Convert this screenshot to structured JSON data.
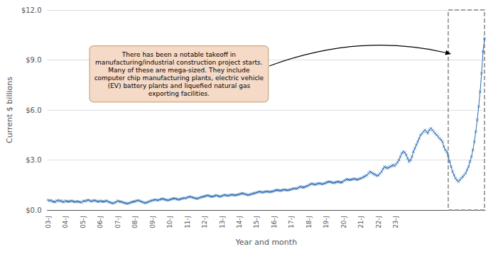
{
  "chart_data": {
    "type": "line",
    "xlabel": "Year and month",
    "ylabel": "Current $ billions",
    "annotation": "There has been a notable takeoff in\nmanufacturing/industrial construction project starts.\nMany of these are mega-sized. They include\ncomputer chip manufacturing plants, electric vehicle\n(EV) battery plants and liquefied natural gas\nexporting facilities.",
    "color": "#2b6cb0",
    "marker": "x",
    "grid": true,
    "ylim": [
      0,
      12
    ],
    "yticks": [
      {
        "value": 0,
        "label": "$0.0"
      },
      {
        "value": 3,
        "label": "$3.0"
      },
      {
        "value": 6,
        "label": "$6.0"
      },
      {
        "value": 9,
        "label": "$9.0"
      },
      {
        "value": 12,
        "label": "$12.0"
      }
    ],
    "categories": [
      "03-J",
      null,
      null,
      null,
      null,
      null,
      null,
      null,
      null,
      null,
      null,
      null,
      "04-J",
      null,
      null,
      null,
      null,
      null,
      null,
      null,
      null,
      null,
      null,
      null,
      "05-J",
      null,
      null,
      null,
      null,
      null,
      null,
      null,
      null,
      null,
      null,
      null,
      "06-J",
      null,
      null,
      null,
      null,
      null,
      null,
      null,
      null,
      null,
      null,
      null,
      "07-J",
      null,
      null,
      null,
      null,
      null,
      null,
      null,
      null,
      null,
      null,
      null,
      "08-J",
      null,
      null,
      null,
      null,
      null,
      null,
      null,
      null,
      null,
      null,
      null,
      "09-J",
      null,
      null,
      null,
      null,
      null,
      null,
      null,
      null,
      null,
      null,
      null,
      "10-J",
      null,
      null,
      null,
      null,
      null,
      null,
      null,
      null,
      null,
      null,
      null,
      "11-J",
      null,
      null,
      null,
      null,
      null,
      null,
      null,
      null,
      null,
      null,
      null,
      "12-J",
      null,
      null,
      null,
      null,
      null,
      null,
      null,
      null,
      null,
      null,
      null,
      "13-J",
      null,
      null,
      null,
      null,
      null,
      null,
      null,
      null,
      null,
      null,
      null,
      "14-J",
      null,
      null,
      null,
      null,
      null,
      null,
      null,
      null,
      null,
      null,
      null,
      "15-J",
      null,
      null,
      null,
      null,
      null,
      null,
      null,
      null,
      null,
      null,
      null,
      "16-J",
      null,
      null,
      null,
      null,
      null,
      null,
      null,
      null,
      null,
      null,
      null,
      "17-J",
      null,
      null,
      null,
      null,
      null,
      null,
      null,
      null,
      null,
      null,
      null,
      "18-J",
      null,
      null,
      null,
      null,
      null,
      null,
      null,
      null,
      null,
      null,
      null,
      "19-J",
      null,
      null,
      null,
      null,
      null,
      null,
      null,
      null,
      null,
      null,
      null,
      "20-J",
      null,
      null,
      null,
      null,
      null,
      null,
      null,
      null,
      null,
      null,
      null,
      "21-J",
      null,
      null,
      null,
      null,
      null,
      null,
      null,
      null,
      null,
      null,
      null,
      "22-J",
      null,
      null,
      null,
      null,
      null,
      null,
      null,
      null,
      null,
      null,
      null,
      "23-J",
      null,
      null,
      null,
      null,
      null,
      null,
      null,
      null,
      null,
      null,
      null,
      null,
      null,
      null,
      null,
      null,
      null,
      null,
      null,
      null,
      null,
      null,
      null,
      null,
      null,
      null,
      null,
      null,
      null,
      null,
      null,
      null,
      null,
      null,
      null,
      null,
      null,
      null,
      null,
      null,
      null,
      null,
      null,
      null,
      null,
      null,
      null,
      null,
      null,
      null,
      null,
      null,
      null,
      null,
      null,
      null,
      null,
      null,
      null,
      null,
      null
    ],
    "values": [
      0.6,
      0.55,
      0.58,
      0.52,
      0.5,
      0.48,
      0.55,
      0.58,
      0.53,
      0.56,
      0.5,
      0.48,
      0.55,
      0.52,
      0.5,
      0.52,
      0.55,
      0.53,
      0.5,
      0.48,
      0.52,
      0.5,
      0.48,
      0.45,
      0.52,
      0.55,
      0.53,
      0.58,
      0.6,
      0.55,
      0.52,
      0.55,
      0.58,
      0.55,
      0.52,
      0.5,
      0.55,
      0.52,
      0.5,
      0.52,
      0.55,
      0.53,
      0.48,
      0.45,
      0.42,
      0.4,
      0.45,
      0.48,
      0.55,
      0.52,
      0.5,
      0.48,
      0.45,
      0.42,
      0.4,
      0.38,
      0.42,
      0.45,
      0.48,
      0.5,
      0.52,
      0.55,
      0.58,
      0.55,
      0.52,
      0.48,
      0.45,
      0.42,
      0.45,
      0.48,
      0.52,
      0.55,
      0.58,
      0.6,
      0.62,
      0.6,
      0.58,
      0.62,
      0.65,
      0.68,
      0.65,
      0.62,
      0.6,
      0.58,
      0.62,
      0.65,
      0.68,
      0.7,
      0.68,
      0.65,
      0.62,
      0.65,
      0.68,
      0.7,
      0.72,
      0.7,
      0.75,
      0.78,
      0.8,
      0.78,
      0.75,
      0.72,
      0.7,
      0.68,
      0.72,
      0.75,
      0.78,
      0.8,
      0.82,
      0.85,
      0.88,
      0.85,
      0.82,
      0.8,
      0.82,
      0.85,
      0.88,
      0.85,
      0.82,
      0.8,
      0.85,
      0.88,
      0.9,
      0.88,
      0.85,
      0.88,
      0.9,
      0.92,
      0.9,
      0.88,
      0.9,
      0.92,
      0.95,
      0.98,
      1.0,
      0.98,
      0.95,
      0.92,
      0.9,
      0.92,
      0.95,
      0.98,
      1.0,
      1.02,
      1.05,
      1.08,
      1.1,
      1.08,
      1.05,
      1.08,
      1.1,
      1.12,
      1.1,
      1.08,
      1.1,
      1.12,
      1.15,
      1.18,
      1.2,
      1.18,
      1.15,
      1.18,
      1.2,
      1.22,
      1.2,
      1.18,
      1.2,
      1.22,
      1.25,
      1.28,
      1.3,
      1.28,
      1.3,
      1.35,
      1.4,
      1.38,
      1.35,
      1.38,
      1.42,
      1.45,
      1.5,
      1.55,
      1.58,
      1.55,
      1.52,
      1.55,
      1.58,
      1.6,
      1.58,
      1.55,
      1.58,
      1.6,
      1.65,
      1.68,
      1.7,
      1.68,
      1.65,
      1.62,
      1.65,
      1.68,
      1.7,
      1.68,
      1.65,
      1.68,
      1.75,
      1.8,
      1.85,
      1.82,
      1.8,
      1.82,
      1.85,
      1.88,
      1.85,
      1.82,
      1.85,
      1.88,
      1.9,
      1.95,
      2.0,
      2.05,
      2.1,
      2.2,
      2.3,
      2.25,
      2.2,
      2.15,
      2.1,
      2.05,
      2.1,
      2.2,
      2.3,
      2.45,
      2.6,
      2.55,
      2.5,
      2.55,
      2.6,
      2.65,
      2.7,
      2.65,
      2.75,
      2.85,
      3.0,
      3.2,
      3.4,
      3.5,
      3.45,
      3.3,
      3.1,
      2.9,
      3.0,
      3.2,
      3.5,
      3.7,
      3.9,
      4.1,
      4.3,
      4.5,
      4.6,
      4.7,
      4.8,
      4.7,
      4.6,
      4.8,
      4.9,
      4.8,
      4.7,
      4.6,
      4.5,
      4.4,
      4.3,
      4.2,
      4.1,
      3.8,
      3.6,
      3.5,
      3.2,
      2.9,
      2.6,
      2.3,
      2.1,
      1.9,
      1.8,
      1.7,
      1.8,
      1.9,
      2.0,
      2.1,
      2.2,
      2.4,
      2.6,
      2.9,
      3.2,
      3.6,
      4.1,
      4.7,
      5.4,
      6.2,
      7.1,
      8.2,
      9.5,
      10.3
    ]
  }
}
